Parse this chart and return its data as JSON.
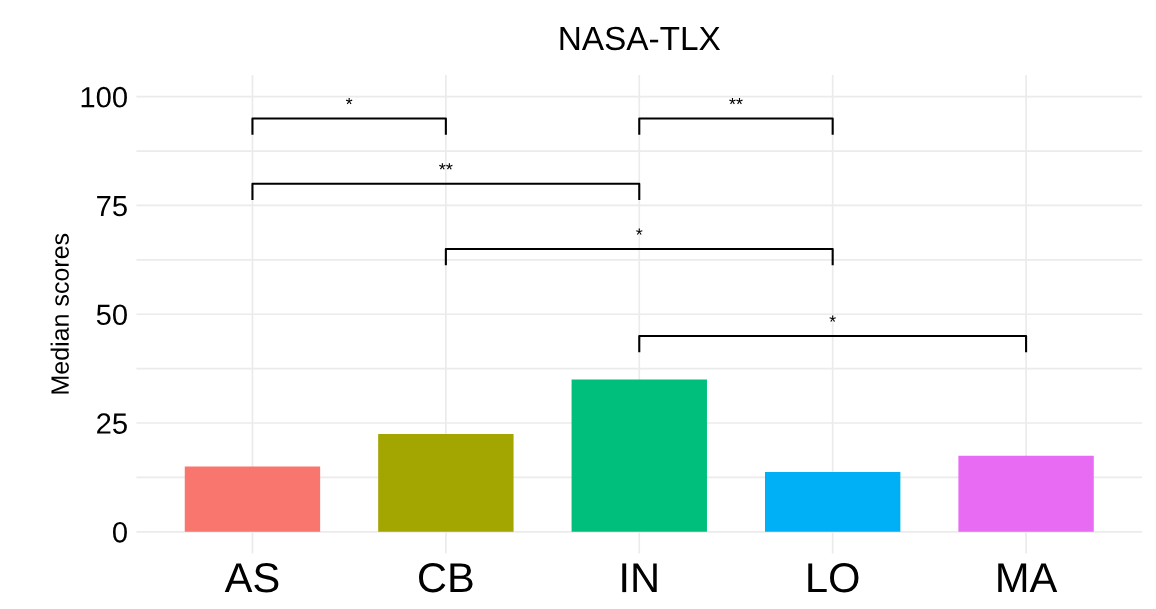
{
  "chart_data": {
    "type": "bar",
    "title": "NASA-TLX",
    "ylabel": "Median scores",
    "categories": [
      "AS",
      "CB",
      "IN",
      "LO",
      "MA"
    ],
    "values": [
      15,
      22.5,
      35,
      13.75,
      17.5
    ],
    "colors": [
      "#f8766d",
      "#a3a500",
      "#00bf7d",
      "#00b0f6",
      "#e76bf3"
    ],
    "ylim": [
      -5,
      105
    ],
    "yticks": [
      0,
      25,
      50,
      75,
      100
    ],
    "grid": true,
    "annotations": [
      "*",
      "**",
      "**",
      "*",
      "*"
    ]
  }
}
